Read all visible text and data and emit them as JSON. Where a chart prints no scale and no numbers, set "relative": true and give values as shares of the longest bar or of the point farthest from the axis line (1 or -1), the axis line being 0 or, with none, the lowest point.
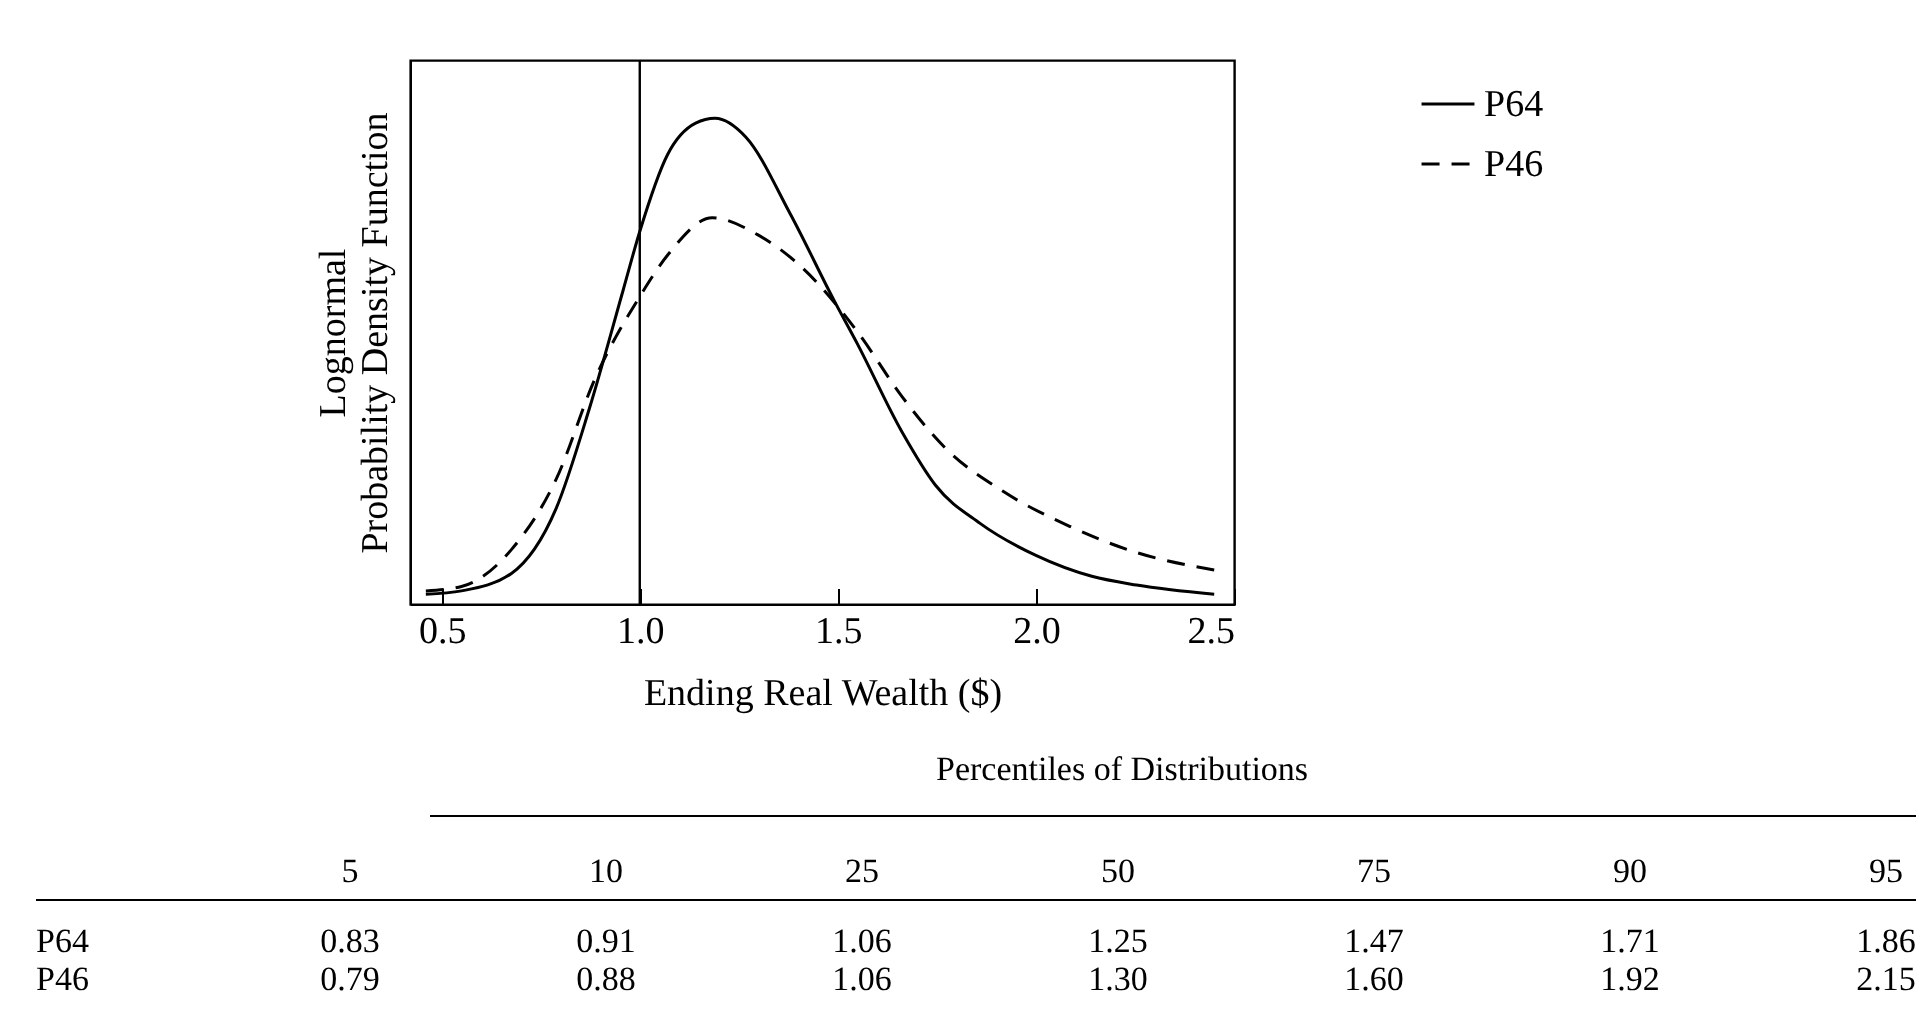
{
  "chart_data": [
    {
      "type": "line",
      "xlabel": "Ending Real Wealth ($)",
      "ylabel": "Lognormal\nProbability Density Function",
      "relative": true,
      "xlim": [
        0.42,
        2.5
      ],
      "xticks": [
        {
          "value": 0.5,
          "label": "0.5"
        },
        {
          "value": 1,
          "label": "1.0"
        },
        {
          "value": 1.5,
          "label": "1.5"
        },
        {
          "value": 2,
          "label": "2.0"
        },
        {
          "value": 2.5,
          "label": "2.5"
        }
      ],
      "legend": "right",
      "ref_lines": [
        {
          "axis": "x",
          "value": 1,
          "color": "#000000"
        }
      ],
      "series": [
        {
          "name": "P64",
          "color": "#000000",
          "line_style": "solid",
          "x": [
            0.46,
            0.55,
            0.676,
            0.789,
            0.873,
            0.958,
            1.0,
            1.07,
            1.141,
            1.19,
            1.268,
            1.38,
            1.493,
            1.549,
            1.662,
            1.746,
            1.859,
            2.0,
            2.141,
            2.254,
            2.45
          ],
          "values": [
            0.02,
            0.027,
            0.063,
            0.197,
            0.403,
            0.646,
            0.767,
            0.925,
            0.99,
            1.0,
            0.961,
            0.803,
            0.621,
            0.536,
            0.354,
            0.245,
            0.166,
            0.1,
            0.057,
            0.039,
            0.02
          ]
        },
        {
          "name": "P46",
          "color": "#000000",
          "line_style": "dashed",
          "x": [
            0.46,
            0.55,
            0.676,
            0.789,
            0.887,
            1.0,
            1.07,
            1.183,
            1.296,
            1.408,
            1.549,
            1.662,
            1.775,
            1.915,
            2.085,
            2.254,
            2.45
          ],
          "values": [
            0.027,
            0.036,
            0.112,
            0.257,
            0.464,
            0.633,
            0.718,
            0.795,
            0.761,
            0.694,
            0.561,
            0.427,
            0.318,
            0.233,
            0.16,
            0.106,
            0.07
          ]
        }
      ]
    },
    {
      "type": "other",
      "title": "Percentiles of Distributions",
      "categories": [
        "5",
        "10",
        "25",
        "50",
        "75",
        "90",
        "95"
      ],
      "series": [
        {
          "name": "P64",
          "values": [
            0.83,
            0.91,
            1.06,
            1.25,
            1.47,
            1.71,
            1.86
          ],
          "value_labels": [
            "0.83",
            "0.91",
            "1.06",
            "1.25",
            "1.47",
            "1.71",
            "1.86"
          ]
        },
        {
          "name": "P46",
          "values": [
            0.79,
            0.88,
            1.06,
            1.3,
            1.6,
            1.92,
            2.15
          ],
          "value_labels": [
            "0.79",
            "0.88",
            "1.06",
            "1.30",
            "1.60",
            "1.92",
            "2.15"
          ]
        }
      ]
    }
  ]
}
